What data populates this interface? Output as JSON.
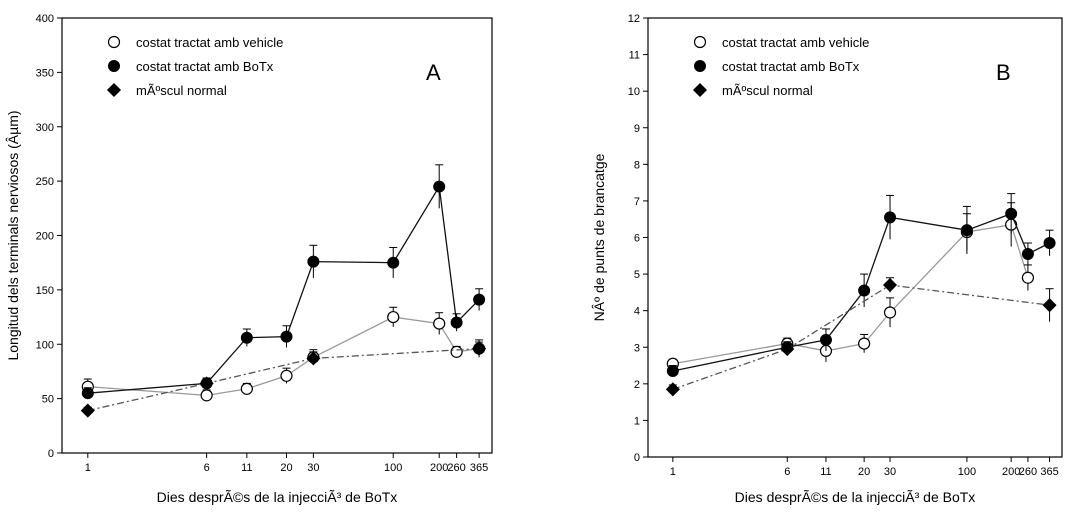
{
  "figure": {
    "xlabel": "Dies desprÃ©s de la injecciÃ³ de BoTx"
  },
  "chart_data": [
    {
      "type": "line",
      "panel_letter": "A",
      "ylabel": "Longitud dels terminals nerviosos (Âµm)",
      "xlabel": "Dies desprÃ©s de la injecciÃ³ de BoTx",
      "x_scale": "log",
      "x_ticks": [
        1,
        6,
        11,
        20,
        30,
        100,
        200,
        260,
        365
      ],
      "ylim": [
        0,
        400
      ],
      "y_ticks": [
        0,
        50,
        100,
        150,
        200,
        250,
        300,
        350,
        400
      ],
      "grid": false,
      "legend_position": "top-left",
      "series": [
        {
          "name": "costat tractat amb vehicle",
          "marker": "open-circle",
          "line": "solid",
          "line_color": "#999999",
          "x": [
            1,
            6,
            11,
            20,
            30,
            100,
            200,
            260,
            365
          ],
          "y": [
            61,
            53,
            59,
            71,
            88,
            125,
            119,
            93,
            96
          ],
          "err": [
            7,
            5,
            5,
            7,
            7,
            9,
            10,
            5,
            6
          ]
        },
        {
          "name": "costat tractat amb BoTx",
          "marker": "filled-circle",
          "line": "solid",
          "line_color": "#111111",
          "x": [
            1,
            6,
            11,
            20,
            30,
            100,
            200,
            260,
            365
          ],
          "y": [
            55,
            64,
            106,
            107,
            176,
            175,
            245,
            120,
            141
          ],
          "err": [
            5,
            5,
            8,
            10,
            15,
            14,
            20,
            8,
            10
          ]
        },
        {
          "name": "mÃºscul normal",
          "marker": "filled-diamond",
          "line": "dash-dot",
          "line_color": "#555555",
          "x": [
            1,
            6,
            30,
            365
          ],
          "y": [
            39,
            64,
            87,
            96
          ],
          "err": [
            3,
            4,
            6,
            8
          ]
        }
      ]
    },
    {
      "type": "line",
      "panel_letter": "B",
      "ylabel": "NÂº de punts de brancatge",
      "xlabel": "Dies desprÃ©s de la injecciÃ³ de BoTx",
      "x_scale": "log",
      "x_ticks": [
        1,
        6,
        11,
        20,
        30,
        100,
        200,
        260,
        365
      ],
      "ylim": [
        0,
        12
      ],
      "y_ticks": [
        0,
        1,
        2,
        3,
        4,
        5,
        6,
        7,
        8,
        9,
        10,
        11,
        12
      ],
      "grid": false,
      "legend_position": "top-left",
      "series": [
        {
          "name": "costat tractat amb vehicle",
          "marker": "open-circle",
          "line": "solid",
          "line_color": "#999999",
          "x": [
            1,
            6,
            11,
            20,
            30,
            100,
            200,
            260
          ],
          "y": [
            2.55,
            3.1,
            2.9,
            3.1,
            3.95,
            6.15,
            6.35,
            4.9
          ],
          "err": [
            0.1,
            0.15,
            0.3,
            0.25,
            0.4,
            0.5,
            0.6,
            0.35
          ]
        },
        {
          "name": "costat tractat amb BoTx",
          "marker": "filled-circle",
          "line": "solid",
          "line_color": "#111111",
          "x": [
            1,
            6,
            11,
            20,
            30,
            100,
            200,
            260,
            365
          ],
          "y": [
            2.35,
            3.0,
            3.2,
            4.55,
            6.55,
            6.2,
            6.65,
            5.55,
            5.85
          ],
          "err": [
            0.15,
            0.15,
            0.3,
            0.45,
            0.6,
            0.65,
            0.55,
            0.3,
            0.35
          ]
        },
        {
          "name": "mÃºscul normal",
          "marker": "filled-diamond",
          "line": "dash-dot",
          "line_color": "#555555",
          "x": [
            1,
            6,
            30,
            365
          ],
          "y": [
            1.85,
            2.95,
            4.7,
            4.15
          ],
          "err": [
            0.12,
            0.12,
            0.2,
            0.45
          ]
        }
      ]
    }
  ]
}
